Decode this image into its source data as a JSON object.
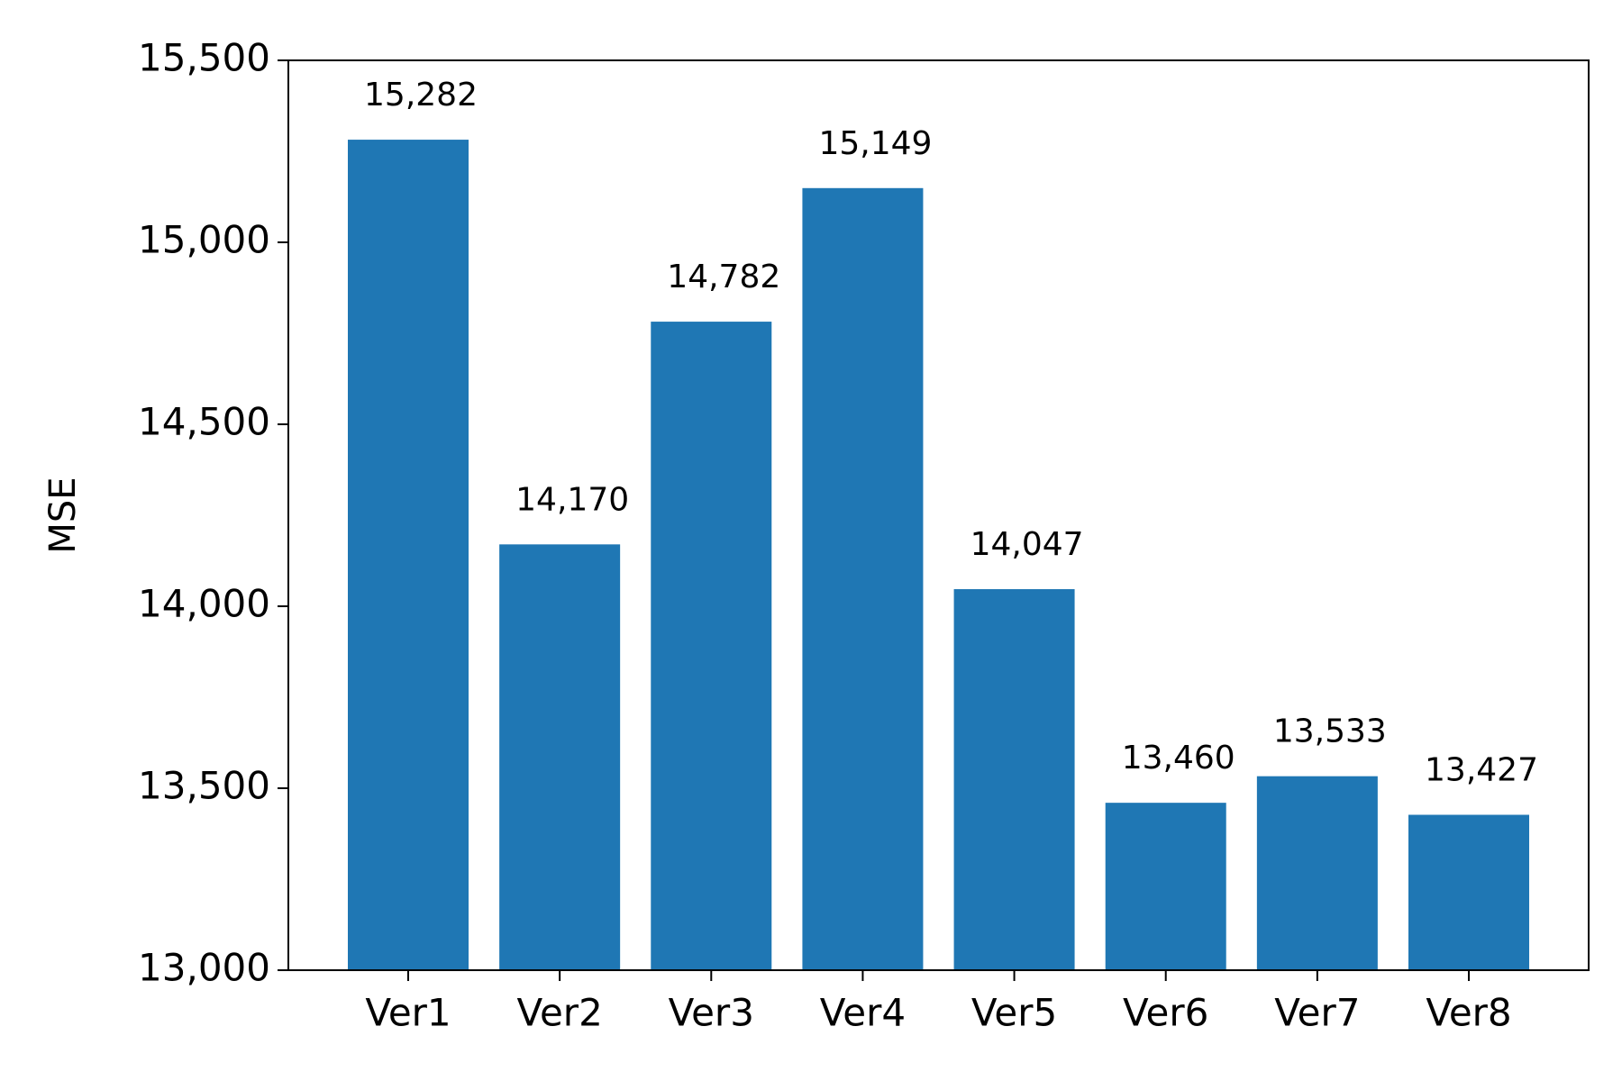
{
  "chart_data": {
    "type": "bar",
    "ylabel": "MSE",
    "categories": [
      "Ver1",
      "Ver2",
      "Ver3",
      "Ver4",
      "Ver5",
      "Ver6",
      "Ver7",
      "Ver8"
    ],
    "values": [
      15282,
      14170,
      14782,
      15149,
      14047,
      13460,
      13533,
      13427
    ],
    "value_labels": [
      "15,282",
      "14,170",
      "14,782",
      "15,149",
      "14,047",
      "13,460",
      "13,533",
      "13,427"
    ],
    "color": "#1f77b4",
    "ylim": [
      13000,
      15500
    ],
    "yticks": [
      {
        "value": 13000,
        "label": "13,000"
      },
      {
        "value": 13500,
        "label": "13,500"
      },
      {
        "value": 14000,
        "label": "14,000"
      },
      {
        "value": 14500,
        "label": "14,500"
      },
      {
        "value": 15000,
        "label": "15,000"
      },
      {
        "value": 15500,
        "label": "15,500"
      }
    ],
    "grid": false
  }
}
